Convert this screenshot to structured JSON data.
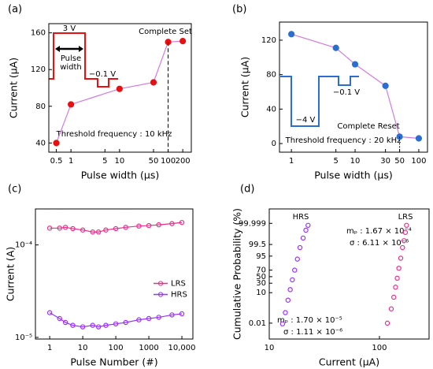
{
  "chart_data": [
    {
      "label": "(a)",
      "type": "line",
      "xscale": "log",
      "x": [
        0.5,
        1,
        10,
        50,
        100,
        200
      ],
      "values": [
        40,
        82,
        99,
        106,
        150,
        151
      ],
      "color": "#e81010",
      "line_color": "#d27be0",
      "markers": "filled",
      "xlim": [
        0.35,
        300
      ],
      "xticks": [
        0.5,
        1,
        5,
        10,
        50,
        100,
        200
      ],
      "ylim": [
        30,
        170
      ],
      "yticks": [
        40,
        80,
        120,
        160
      ],
      "xlabel": "Pulse width (μs)",
      "ylabel": "Current (μA)",
      "annotations": [
        "Complete Set",
        "Threshold frequency : 10 kHz",
        "3 V",
        "Pulse",
        "width",
        "−0.1 V"
      ]
    },
    {
      "label": "(b)",
      "type": "line",
      "xscale": "log",
      "x": [
        1,
        5,
        10,
        30,
        50,
        100
      ],
      "values": [
        127,
        111,
        92,
        67,
        8,
        6
      ],
      "color": "#2a6fd0",
      "line_color": "#d27be0",
      "markers": "filled",
      "xlim": [
        0.65,
        137
      ],
      "xticks": [
        1,
        5,
        10,
        30,
        50,
        100
      ],
      "ylim": [
        -10,
        141
      ],
      "yticks": [
        0,
        40,
        80,
        120
      ],
      "xlabel": "Pulse width (μs)",
      "ylabel": "Current (μA)",
      "annotations": [
        "−4 V",
        "−0.1 V",
        "Complete Reset",
        "Threshold frequency : 20 kHz"
      ]
    },
    {
      "label": "(c)",
      "type": "line",
      "xscale": "log",
      "yscale": "log",
      "x": [
        1,
        2,
        3,
        5,
        10,
        20,
        30,
        50,
        100,
        200,
        500,
        1000,
        2000,
        5000,
        10000
      ],
      "series": [
        {
          "name": "LRS",
          "color": "#e8308a",
          "values": [
            0.000152,
            0.000152,
            0.000155,
            0.00015,
            0.000145,
            0.000138,
            0.000138,
            0.000145,
            0.00015,
            0.000155,
            0.00016,
            0.000162,
            0.000165,
            0.00017,
            0.000175
          ]
        },
        {
          "name": "HRS",
          "color": "#9b30ff",
          "values": [
            1.85e-05,
            1.6e-05,
            1.45e-05,
            1.35e-05,
            1.3e-05,
            1.35e-05,
            1.3e-05,
            1.35e-05,
            1.4e-05,
            1.45e-05,
            1.55e-05,
            1.6e-05,
            1.65e-05,
            1.75e-05,
            1.8e-05
          ]
        }
      ],
      "markers": "hollow",
      "legend": "right",
      "xlim": [
        0.37,
        21500
      ],
      "xticks": [
        1,
        10,
        100,
        1000,
        {
          "value": 10000,
          "label": "10,000"
        }
      ],
      "ylim": [
        9.6e-06,
        0.000245
      ],
      "yticks": [
        {
          "value": 0.0001,
          "label": "10⁻⁴"
        },
        {
          "value": 1e-05,
          "label": "10⁻⁵"
        }
      ],
      "xlabel": "Pulse Number (#)",
      "ylabel": "Current (A)"
    },
    {
      "label": "(d)",
      "type": "scatter",
      "xscale": "log",
      "yscale": "probability",
      "series": [
        {
          "name": "HRS",
          "color": "#9b30ff",
          "x": [
            13.2,
            14,
            14.8,
            15.5,
            16.2,
            17,
            18,
            19,
            20.3,
            21.5,
            22.5
          ],
          "values": [
            0.008,
            0.2,
            3,
            15,
            40,
            70,
            92,
            99,
            99.9,
            99.99,
            99.998
          ]
        },
        {
          "name": "LRS",
          "color": "#e8308a",
          "x": [
            118,
            128,
            135,
            140,
            145,
            150,
            156,
            162,
            167,
            172,
            176
          ],
          "values": [
            0.01,
            0.5,
            5,
            20,
            45,
            75,
            93,
            99,
            99.8,
            99.98,
            99.998
          ]
        }
      ],
      "markers": "hollow",
      "xlim": [
        10,
        282
      ],
      "xticks": [
        10,
        100
      ],
      "ylim": [
        3e-05,
        99.999997
      ],
      "yticks": [
        0.01,
        10,
        30,
        50,
        70,
        95,
        99.5,
        99.999
      ],
      "xlabel": "Current (μA)",
      "ylabel": "Cumulative Probability (%)",
      "annotations": [
        "mₚ : 1.67 × 10⁻⁴",
        "σ : 6.11 × 10⁻⁶",
        "mₚ : 1.70 × 10⁻⁵",
        "σ : 1.11 × 10⁻⁶"
      ]
    }
  ]
}
